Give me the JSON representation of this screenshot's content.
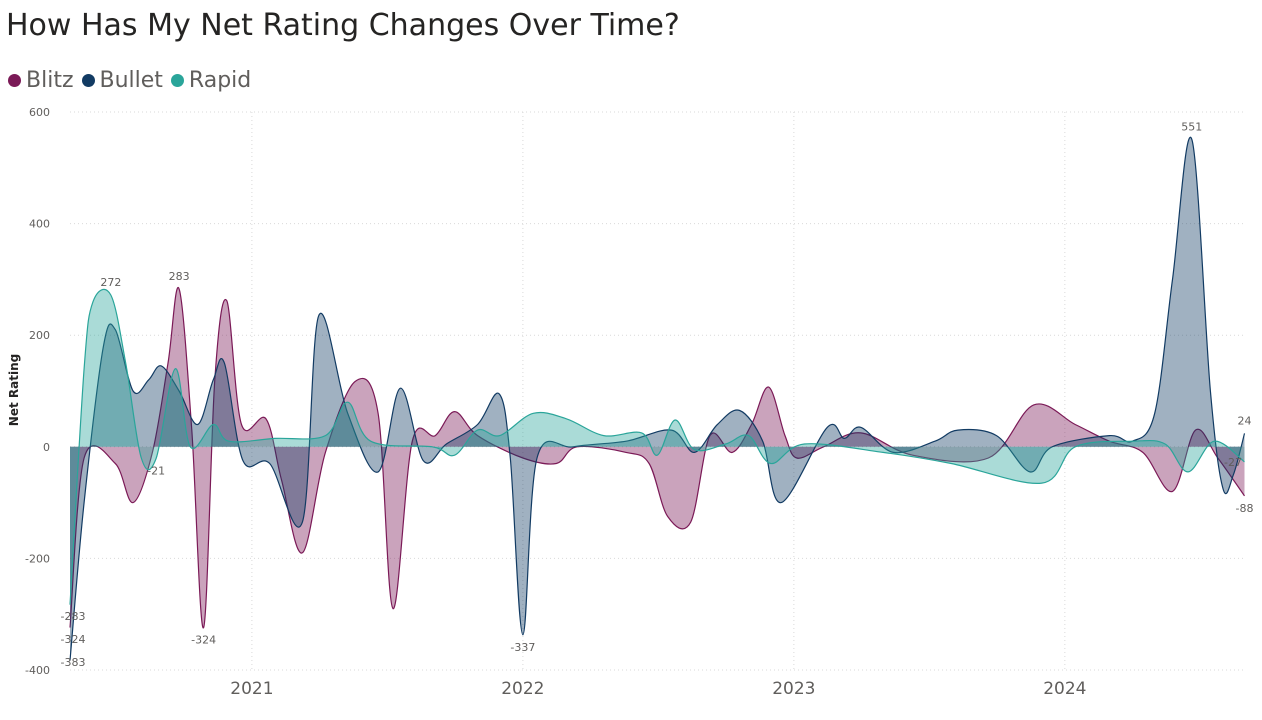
{
  "title": "How Has My Net Rating Changes Over Time?",
  "legend": [
    {
      "name": "Blitz",
      "color": "#7b1a57"
    },
    {
      "name": "Bullet",
      "color": "#123b63"
    },
    {
      "name": "Rapid",
      "color": "#2aa59a"
    }
  ],
  "chart_data": {
    "type": "area",
    "title": "How Has My Net Rating Changes Over Time?",
    "xlabel": "",
    "ylabel": "Net Rating",
    "ylim": [
      -400,
      600
    ],
    "yticks": [
      -400,
      -200,
      0,
      200,
      400,
      600
    ],
    "xlim": [
      "2020-05",
      "2024-09"
    ],
    "xticks": [
      {
        "x": "2021-01",
        "label": "2021"
      },
      {
        "x": "2022-01",
        "label": "2022"
      },
      {
        "x": "2023-01",
        "label": "2023"
      },
      {
        "x": "2024-01",
        "label": "2024"
      }
    ],
    "grid": true,
    "legend_position": "top-left",
    "series": [
      {
        "name": "Blitz",
        "color": "#7b1a57",
        "points": [
          {
            "x": "2020-05-01",
            "y": -324
          },
          {
            "x": "2020-05-20",
            "y": -20
          },
          {
            "x": "2020-07-01",
            "y": -30
          },
          {
            "x": "2020-07-25",
            "y": -100
          },
          {
            "x": "2020-08-20",
            "y": -10
          },
          {
            "x": "2020-09-10",
            "y": 150
          },
          {
            "x": "2020-09-25",
            "y": 283
          },
          {
            "x": "2020-10-12",
            "y": 30
          },
          {
            "x": "2020-10-28",
            "y": -324
          },
          {
            "x": "2020-11-12",
            "y": 120
          },
          {
            "x": "2020-11-28",
            "y": 262
          },
          {
            "x": "2020-12-18",
            "y": 40
          },
          {
            "x": "2021-01-20",
            "y": 50
          },
          {
            "x": "2021-02-10",
            "y": -60
          },
          {
            "x": "2021-03-10",
            "y": -190
          },
          {
            "x": "2021-04-10",
            "y": -10
          },
          {
            "x": "2021-05-20",
            "y": 117
          },
          {
            "x": "2021-06-20",
            "y": 60
          },
          {
            "x": "2021-07-10",
            "y": -290
          },
          {
            "x": "2021-08-05",
            "y": 10
          },
          {
            "x": "2021-09-05",
            "y": 20
          },
          {
            "x": "2021-10-01",
            "y": 63
          },
          {
            "x": "2021-11-01",
            "y": 20
          },
          {
            "x": "2022-01-01",
            "y": -20
          },
          {
            "x": "2022-02-15",
            "y": -30
          },
          {
            "x": "2022-03-15",
            "y": 0
          },
          {
            "x": "2022-05-20",
            "y": -10
          },
          {
            "x": "2022-06-20",
            "y": -30
          },
          {
            "x": "2022-07-15",
            "y": -125
          },
          {
            "x": "2022-08-15",
            "y": -135
          },
          {
            "x": "2022-09-10",
            "y": 20
          },
          {
            "x": "2022-10-10",
            "y": -10
          },
          {
            "x": "2022-11-05",
            "y": 40
          },
          {
            "x": "2022-11-28",
            "y": 107
          },
          {
            "x": "2022-12-20",
            "y": 20
          },
          {
            "x": "2023-01-05",
            "y": -20
          },
          {
            "x": "2023-02-10",
            "y": 0
          },
          {
            "x": "2023-04-01",
            "y": 25
          },
          {
            "x": "2023-06-10",
            "y": -15
          },
          {
            "x": "2023-09-20",
            "y": -20
          },
          {
            "x": "2023-11-20",
            "y": 75
          },
          {
            "x": "2024-01-15",
            "y": 40
          },
          {
            "x": "2024-03-01",
            "y": 10
          },
          {
            "x": "2024-04-15",
            "y": -10
          },
          {
            "x": "2024-05-25",
            "y": -80
          },
          {
            "x": "2024-06-25",
            "y": 30
          },
          {
            "x": "2024-07-25",
            "y": -20
          },
          {
            "x": "2024-08-30",
            "y": -88
          }
        ]
      },
      {
        "name": "Bullet",
        "color": "#123b63",
        "points": [
          {
            "x": "2020-05-01",
            "y": -383
          },
          {
            "x": "2020-05-20",
            "y": -100
          },
          {
            "x": "2020-06-15",
            "y": 180
          },
          {
            "x": "2020-07-01",
            "y": 210
          },
          {
            "x": "2020-07-25",
            "y": 100
          },
          {
            "x": "2020-08-15",
            "y": 120
          },
          {
            "x": "2020-09-01",
            "y": 145
          },
          {
            "x": "2020-09-25",
            "y": 100
          },
          {
            "x": "2020-10-20",
            "y": 40
          },
          {
            "x": "2020-11-10",
            "y": 120
          },
          {
            "x": "2020-11-25",
            "y": 150
          },
          {
            "x": "2020-12-20",
            "y": -25
          },
          {
            "x": "2021-01-25",
            "y": -30
          },
          {
            "x": "2021-03-10",
            "y": -135
          },
          {
            "x": "2021-04-01",
            "y": 235
          },
          {
            "x": "2021-05-10",
            "y": 60
          },
          {
            "x": "2021-06-20",
            "y": -45
          },
          {
            "x": "2021-07-20",
            "y": 105
          },
          {
            "x": "2021-08-20",
            "y": -25
          },
          {
            "x": "2021-09-20",
            "y": 5
          },
          {
            "x": "2021-11-01",
            "y": 40
          },
          {
            "x": "2021-11-30",
            "y": 95
          },
          {
            "x": "2021-12-15",
            "y": -20
          },
          {
            "x": "2022-01-01",
            "y": -337
          },
          {
            "x": "2022-01-20",
            "y": -20
          },
          {
            "x": "2022-03-10",
            "y": 0
          },
          {
            "x": "2022-05-20",
            "y": 10
          },
          {
            "x": "2022-07-20",
            "y": 30
          },
          {
            "x": "2022-08-20",
            "y": -10
          },
          {
            "x": "2022-09-20",
            "y": 40
          },
          {
            "x": "2022-10-20",
            "y": 65
          },
          {
            "x": "2022-11-20",
            "y": 10
          },
          {
            "x": "2022-12-15",
            "y": -100
          },
          {
            "x": "2023-02-15",
            "y": 35
          },
          {
            "x": "2023-03-10",
            "y": 15
          },
          {
            "x": "2023-04-01",
            "y": 35
          },
          {
            "x": "2023-05-15",
            "y": -10
          },
          {
            "x": "2023-07-10",
            "y": 10
          },
          {
            "x": "2023-08-10",
            "y": 30
          },
          {
            "x": "2023-10-01",
            "y": 20
          },
          {
            "x": "2023-11-15",
            "y": -45
          },
          {
            "x": "2023-12-15",
            "y": 0
          },
          {
            "x": "2024-03-01",
            "y": 20
          },
          {
            "x": "2024-04-01",
            "y": 10
          },
          {
            "x": "2024-05-01",
            "y": 60
          },
          {
            "x": "2024-05-25",
            "y": 300
          },
          {
            "x": "2024-06-20",
            "y": 551
          },
          {
            "x": "2024-07-15",
            "y": 100
          },
          {
            "x": "2024-08-01",
            "y": -75
          },
          {
            "x": "2024-08-15",
            "y": -50
          },
          {
            "x": "2024-08-30",
            "y": 24
          }
        ]
      },
      {
        "name": "Rapid",
        "color": "#2aa59a",
        "points": [
          {
            "x": "2020-05-01",
            "y": -283
          },
          {
            "x": "2020-05-20",
            "y": 140
          },
          {
            "x": "2020-06-01",
            "y": 260
          },
          {
            "x": "2020-06-25",
            "y": 272
          },
          {
            "x": "2020-07-15",
            "y": 150
          },
          {
            "x": "2020-08-05",
            "y": -20
          },
          {
            "x": "2020-08-25",
            "y": -21
          },
          {
            "x": "2020-09-20",
            "y": 140
          },
          {
            "x": "2020-10-10",
            "y": 0
          },
          {
            "x": "2020-11-10",
            "y": 40
          },
          {
            "x": "2020-12-01",
            "y": 10
          },
          {
            "x": "2021-02-01",
            "y": 15
          },
          {
            "x": "2021-04-10",
            "y": 20
          },
          {
            "x": "2021-05-10",
            "y": 80
          },
          {
            "x": "2021-06-10",
            "y": 10
          },
          {
            "x": "2021-09-01",
            "y": 0
          },
          {
            "x": "2021-10-01",
            "y": -15
          },
          {
            "x": "2021-11-01",
            "y": 30
          },
          {
            "x": "2021-12-01",
            "y": 20
          },
          {
            "x": "2022-01-15",
            "y": 60
          },
          {
            "x": "2022-03-01",
            "y": 50
          },
          {
            "x": "2022-04-20",
            "y": 20
          },
          {
            "x": "2022-06-10",
            "y": 25
          },
          {
            "x": "2022-07-01",
            "y": -15
          },
          {
            "x": "2022-07-25",
            "y": 48
          },
          {
            "x": "2022-08-20",
            "y": -5
          },
          {
            "x": "2022-10-01",
            "y": 5
          },
          {
            "x": "2022-11-01",
            "y": 20
          },
          {
            "x": "2022-12-01",
            "y": -30
          },
          {
            "x": "2023-01-15",
            "y": 5
          },
          {
            "x": "2023-05-01",
            "y": -10
          },
          {
            "x": "2023-08-01",
            "y": -30
          },
          {
            "x": "2023-12-01",
            "y": -65
          },
          {
            "x": "2024-01-15",
            "y": 0
          },
          {
            "x": "2024-04-01",
            "y": 10
          },
          {
            "x": "2024-05-15",
            "y": 5
          },
          {
            "x": "2024-06-15",
            "y": -45
          },
          {
            "x": "2024-07-20",
            "y": 10
          },
          {
            "x": "2024-08-30",
            "y": -27
          }
        ]
      }
    ],
    "data_labels": [
      {
        "series": "Bullet",
        "x": "2024-06-20",
        "y": 551,
        "text": "551",
        "pos": "above"
      },
      {
        "series": "Rapid",
        "x": "2020-06-25",
        "y": 272,
        "text": "272",
        "pos": "above"
      },
      {
        "series": "Blitz",
        "x": "2020-09-25",
        "y": 283,
        "text": "283",
        "pos": "above"
      },
      {
        "series": "Rapid",
        "x": "2020-08-25",
        "y": -21,
        "text": "-21",
        "pos": "below"
      },
      {
        "series": "Blitz",
        "x": "2020-10-28",
        "y": -324,
        "text": "-324",
        "pos": "below"
      },
      {
        "series": "Bullet",
        "x": "2022-01-01",
        "y": -337,
        "text": "-337",
        "pos": "below"
      },
      {
        "series": "Rapid",
        "x": "2020-05-01",
        "y": -283,
        "text": "-283",
        "pos": "below"
      },
      {
        "series": "Blitz",
        "x": "2020-05-01",
        "y": -324,
        "text": "-324",
        "pos": "below"
      },
      {
        "series": "Bullet",
        "x": "2020-05-01",
        "y": -383,
        "text": "-383",
        "pos": "below"
      },
      {
        "series": "Bullet",
        "x": "2024-08-30",
        "y": 24,
        "text": "24",
        "pos": "above"
      },
      {
        "series": "Rapid",
        "x": "2024-08-30",
        "y": -27,
        "text": "-27",
        "pos": "right"
      },
      {
        "series": "Blitz",
        "x": "2024-08-30",
        "y": -88,
        "text": "-88",
        "pos": "below"
      }
    ]
  }
}
